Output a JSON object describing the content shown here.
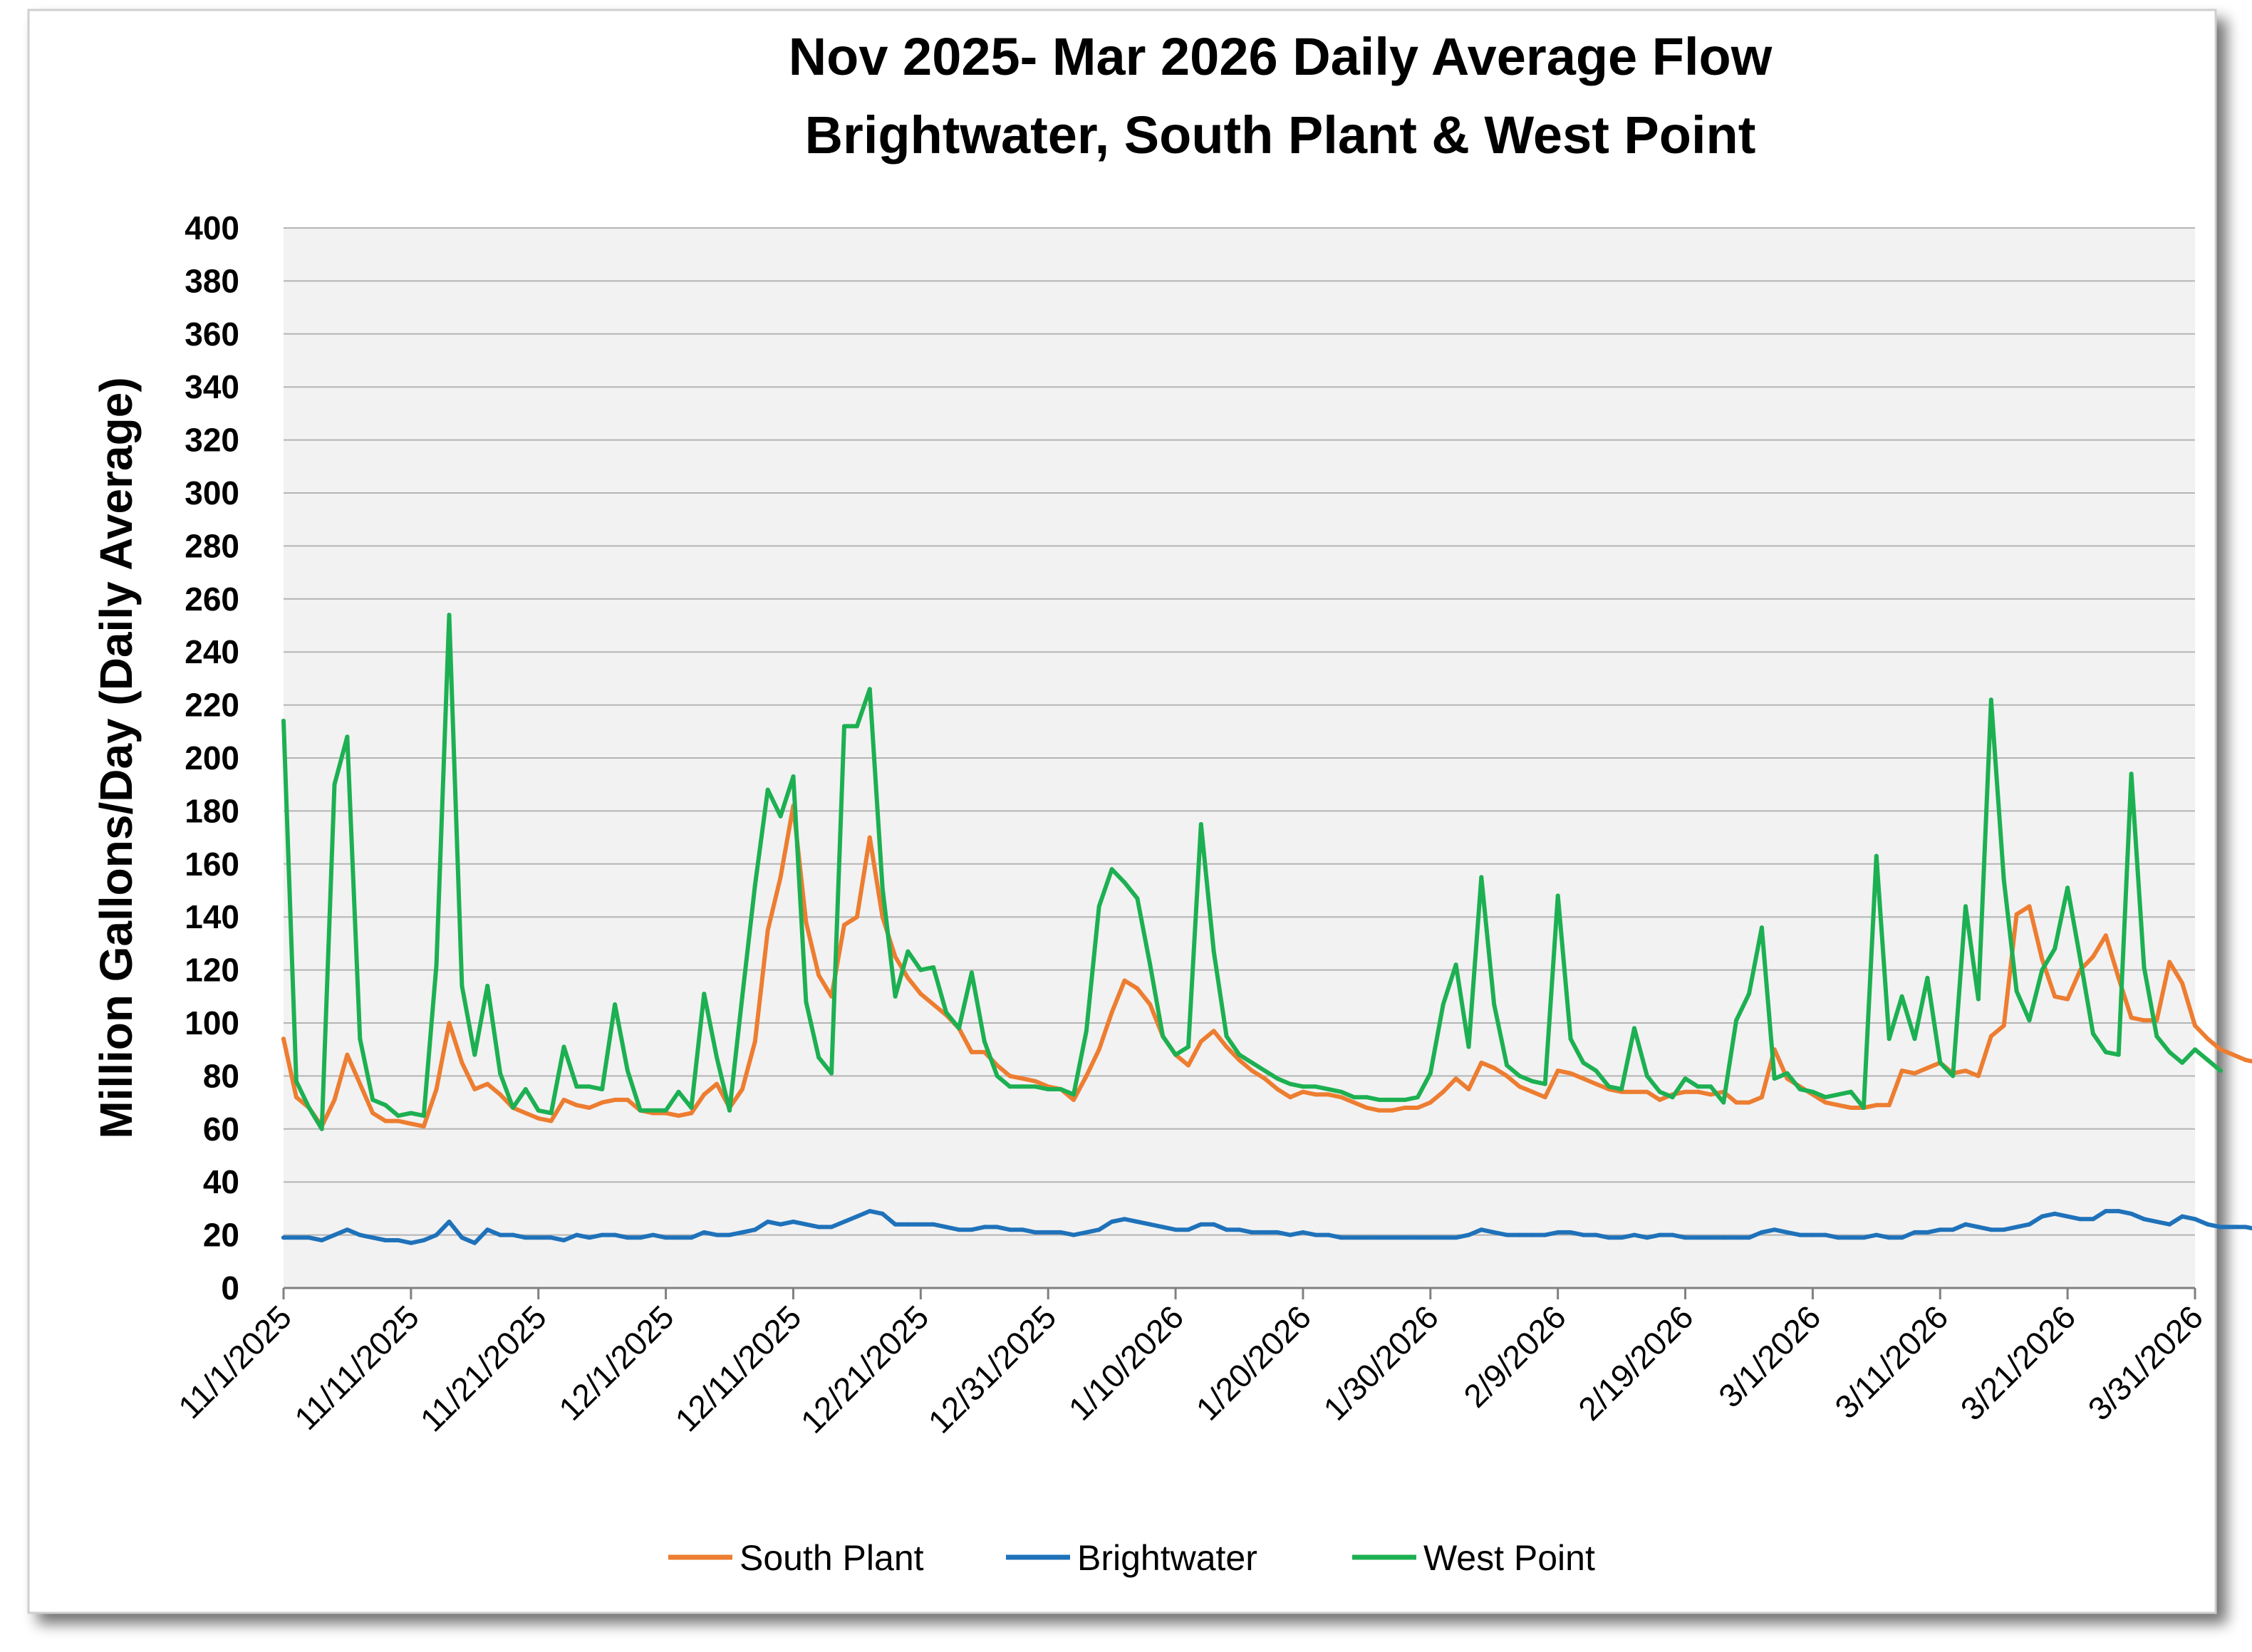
{
  "chart_data": {
    "type": "line",
    "title": "Nov 2025- Mar 2026 Daily Average Flow",
    "subtitle": "Brightwater, South Plant & West Point",
    "ylabel": "Million Gallons/Day (Daily Average)",
    "xlabel": "",
    "ylim": [
      0,
      400
    ],
    "y_ticks": [
      0,
      20,
      40,
      60,
      80,
      100,
      120,
      140,
      160,
      180,
      200,
      220,
      240,
      260,
      280,
      300,
      320,
      340,
      360,
      380,
      400
    ],
    "x_start": "11/1/2025",
    "x_end": "3/31/2026",
    "x_tick_labels": [
      "11/1/2025",
      "11/11/2025",
      "11/21/2025",
      "12/1/2025",
      "12/11/2025",
      "12/21/2025",
      "12/31/2025",
      "1/10/2026",
      "1/20/2026",
      "1/30/2026",
      "2/9/2026",
      "2/19/2026",
      "3/1/2026",
      "3/11/2026",
      "3/21/2026",
      "3/31/2026"
    ],
    "grid": true,
    "legend_position": "bottom",
    "series": [
      {
        "name": "South Plant",
        "color": "#ED7D31",
        "values": [
          94,
          72,
          68,
          61,
          71,
          88,
          77,
          66,
          63,
          63,
          62,
          61,
          75,
          100,
          85,
          75,
          77,
          73,
          68,
          66,
          64,
          63,
          71,
          69,
          68,
          70,
          71,
          71,
          67,
          66,
          66,
          65,
          66,
          73,
          77,
          68,
          75,
          93,
          135,
          155,
          182,
          138,
          118,
          110,
          137,
          140,
          170,
          140,
          125,
          117,
          111,
          107,
          103,
          98,
          89,
          89,
          84,
          80,
          79,
          78,
          76,
          75,
          71,
          80,
          90,
          104,
          116,
          113,
          107,
          95,
          88,
          84,
          93,
          97,
          91,
          86,
          82,
          79,
          75,
          72,
          74,
          73,
          73,
          72,
          70,
          68,
          67,
          67,
          68,
          68,
          70,
          74,
          79,
          75,
          85,
          83,
          80,
          76,
          74,
          72,
          82,
          81,
          79,
          77,
          75,
          74,
          74,
          74,
          71,
          73,
          74,
          74,
          73,
          74,
          70,
          70,
          72,
          90,
          79,
          76,
          73,
          70,
          69,
          68,
          68,
          69,
          69,
          82,
          81,
          83,
          85,
          81,
          82,
          80,
          95,
          99,
          141,
          144,
          124,
          110,
          109,
          120,
          125,
          133,
          117,
          102,
          101,
          101,
          123,
          115,
          99,
          94,
          90,
          88,
          86,
          85,
          81
        ],
        "labels": []
      },
      {
        "name": "Brightwater",
        "color": "#1F72BA",
        "values": [
          19,
          19,
          19,
          18,
          20,
          22,
          20,
          19,
          18,
          18,
          17,
          18,
          20,
          25,
          19,
          17,
          22,
          20,
          20,
          19,
          19,
          19,
          18,
          20,
          19,
          20,
          20,
          19,
          19,
          20,
          19,
          19,
          19,
          21,
          20,
          20,
          21,
          22,
          25,
          24,
          25,
          24,
          23,
          23,
          25,
          27,
          29,
          28,
          24,
          24,
          24,
          24,
          23,
          22,
          22,
          23,
          23,
          22,
          22,
          21,
          21,
          21,
          20,
          21,
          22,
          25,
          26,
          25,
          24,
          23,
          22,
          22,
          24,
          24,
          22,
          22,
          21,
          21,
          21,
          20,
          21,
          20,
          20,
          19,
          19,
          19,
          19,
          19,
          19,
          19,
          19,
          19,
          19,
          20,
          22,
          21,
          20,
          20,
          20,
          20,
          21,
          21,
          20,
          20,
          19,
          19,
          20,
          19,
          20,
          20,
          19,
          19,
          19,
          19,
          19,
          19,
          21,
          22,
          21,
          20,
          20,
          20,
          19,
          19,
          19,
          20,
          19,
          19,
          21,
          21,
          22,
          22,
          24,
          23,
          22,
          22,
          23,
          24,
          27,
          28,
          27,
          26,
          26,
          29,
          29,
          28,
          26,
          25,
          24,
          27,
          26,
          24,
          23,
          23,
          23,
          22,
          22
        ]
      },
      {
        "name": "West Point",
        "color": "#1DB052",
        "values": [
          214,
          78,
          68,
          60,
          190,
          208,
          94,
          71,
          69,
          65,
          66,
          65,
          122,
          254,
          114,
          88,
          114,
          81,
          68,
          75,
          67,
          66,
          91,
          76,
          76,
          75,
          107,
          82,
          67,
          67,
          67,
          74,
          68,
          111,
          87,
          67,
          110,
          152,
          188,
          178,
          193,
          108,
          87,
          81,
          212,
          212,
          226,
          151,
          110,
          127,
          120,
          121,
          104,
          98,
          119,
          93,
          80,
          76,
          76,
          76,
          75,
          75,
          73,
          97,
          144,
          158,
          153,
          147,
          122,
          95,
          88,
          91,
          175,
          127,
          95,
          88,
          85,
          82,
          79,
          77,
          76,
          76,
          75,
          74,
          72,
          72,
          71,
          71,
          71,
          72,
          81,
          107,
          122,
          91,
          155,
          107,
          84,
          80,
          78,
          77,
          148,
          94,
          85,
          82,
          76,
          75,
          98,
          80,
          74,
          72,
          79,
          76,
          76,
          70,
          101,
          111,
          136,
          79,
          81,
          75,
          74,
          72,
          73,
          74,
          68,
          163,
          94,
          110,
          94,
          117,
          85,
          80,
          144,
          109,
          222,
          154,
          112,
          101,
          120,
          128,
          151,
          124,
          96,
          89,
          88,
          194,
          121,
          95,
          89,
          85,
          90,
          86,
          82
        ]
      }
    ]
  }
}
